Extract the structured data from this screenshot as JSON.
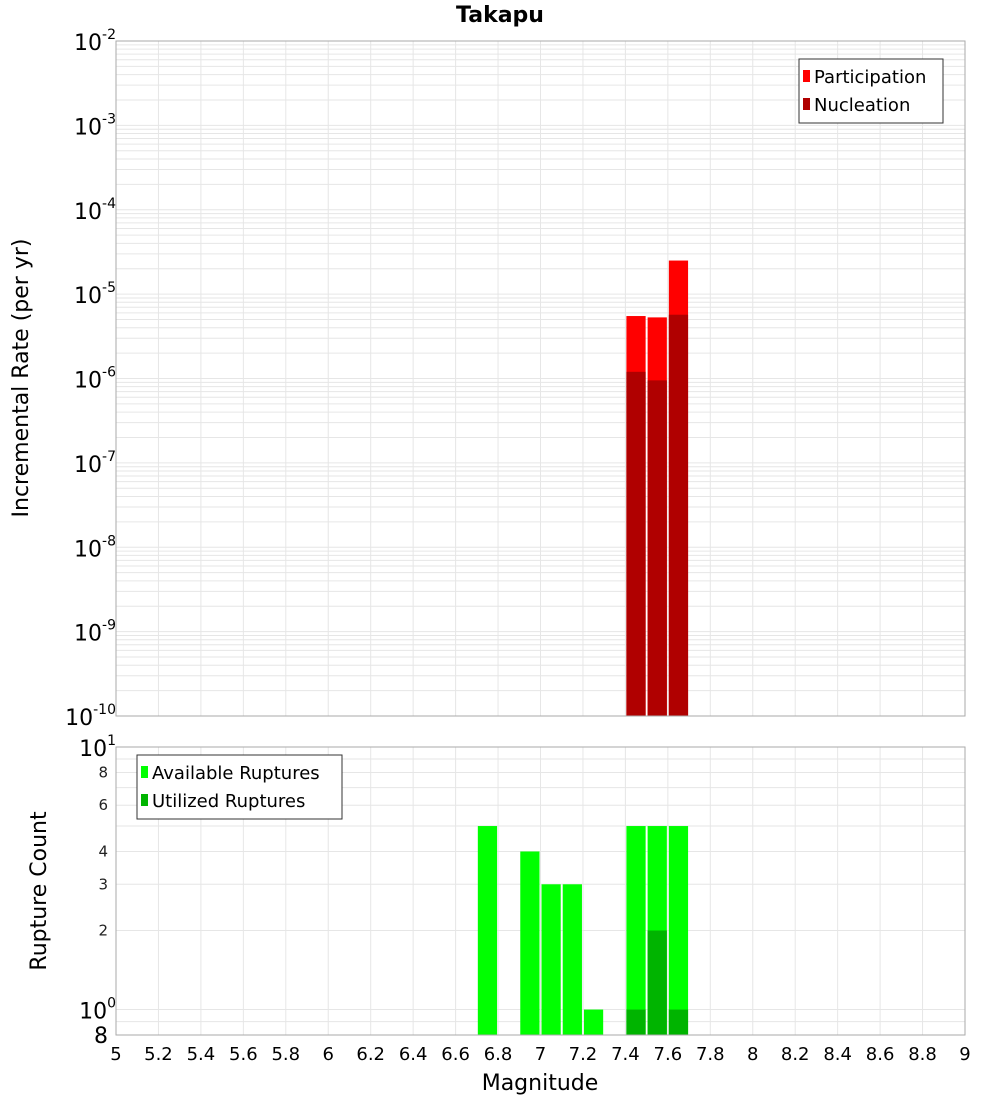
{
  "chart_data": [
    {
      "type": "bar",
      "title": "Takapu",
      "xlabel": "",
      "ylabel": "Incremental Rate (per yr)",
      "yscale": "log",
      "ylim": [
        1e-10,
        0.01
      ],
      "xlim": [
        5,
        9
      ],
      "y_ticks": [
        {
          "base": "10",
          "exp": "-2"
        },
        {
          "base": "10",
          "exp": "-3"
        },
        {
          "base": "10",
          "exp": "-4"
        },
        {
          "base": "10",
          "exp": "-5"
        },
        {
          "base": "10",
          "exp": "-6"
        },
        {
          "base": "10",
          "exp": "-7"
        },
        {
          "base": "10",
          "exp": "-8"
        },
        {
          "base": "10",
          "exp": "-9"
        },
        {
          "base": "10",
          "exp": "-10"
        }
      ],
      "bin_width": 0.1,
      "grid": true,
      "legend_position": "top-right",
      "series": [
        {
          "name": "Participation",
          "color": "#ff0000",
          "x": [
            7.45,
            7.55,
            7.65
          ],
          "values": [
            5.5e-06,
            5.3e-06,
            2.5e-05
          ]
        },
        {
          "name": "Nucleation",
          "color": "#b00000",
          "x": [
            7.45,
            7.55,
            7.65
          ],
          "values": [
            1.2e-06,
            9.5e-07,
            5.7e-06
          ]
        }
      ]
    },
    {
      "type": "bar",
      "xlabel": "Magnitude",
      "ylabel": "Rupture Count",
      "yscale": "log",
      "ylim": [
        0.8,
        10
      ],
      "xlim": [
        5,
        9
      ],
      "x_ticks": [
        "5",
        "5.2",
        "5.4",
        "5.6",
        "5.8",
        "6",
        "6.2",
        "6.4",
        "6.6",
        "6.8",
        "7",
        "7.2",
        "7.4",
        "7.6",
        "7.8",
        "8",
        "8.2",
        "8.4",
        "8.6",
        "8.8",
        "9"
      ],
      "y_ticks_minor": [
        {
          "label": "8",
          "value": 8
        },
        {
          "label": "6",
          "value": 6
        },
        {
          "label": "4",
          "value": 4
        },
        {
          "label": "3",
          "value": 3
        },
        {
          "label": "2",
          "value": 2
        }
      ],
      "y_ticks_major": [
        {
          "base": "10",
          "exp": "1",
          "value": 10
        },
        {
          "base": "10",
          "exp": "0",
          "value": 1
        }
      ],
      "y_bottom_label": "8",
      "bin_width": 0.1,
      "grid": true,
      "legend_position": "top-left",
      "series": [
        {
          "name": "Available Ruptures",
          "color": "#00ff00",
          "x": [
            6.75,
            6.95,
            7.05,
            7.15,
            7.25,
            7.45,
            7.55,
            7.65
          ],
          "values": [
            5,
            4,
            3,
            3,
            1,
            5,
            5,
            5
          ]
        },
        {
          "name": "Utilized Ruptures",
          "color": "#00b400",
          "x": [
            7.45,
            7.55,
            7.65
          ],
          "values": [
            1,
            2,
            1
          ]
        }
      ]
    }
  ]
}
